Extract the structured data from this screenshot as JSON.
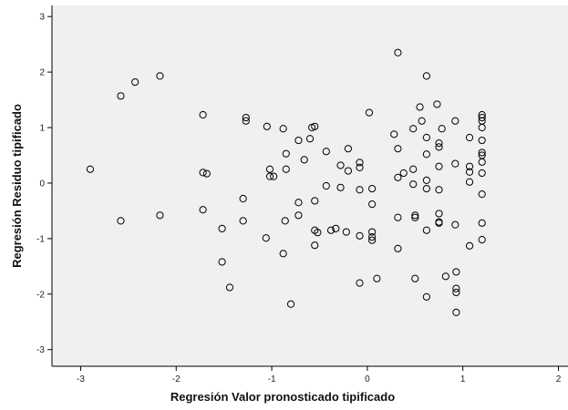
{
  "colors": {
    "plot_background": "#f0f0f0",
    "page_background": "#ffffff",
    "axis": "#000000",
    "marker_stroke": "#000000"
  },
  "chart_data": {
    "type": "scatter",
    "title": "",
    "xlabel": "Regresión Valor pronosticado tipificado",
    "ylabel": "Regresión Residuo tipificado",
    "xlim": [
      -3.3,
      2.1
    ],
    "ylim": [
      -3.3,
      3.2
    ],
    "xticks": [
      -3,
      -2,
      -1,
      0,
      1,
      2
    ],
    "yticks": [
      -3,
      -2,
      -1,
      0,
      1,
      2,
      3
    ],
    "xtick_labels": [
      "-3",
      "-2",
      "-1",
      "0",
      "1",
      "2"
    ],
    "ytick_labels": [
      "-3",
      "-2",
      "-1",
      "0",
      "1",
      "2",
      "3"
    ],
    "grid": false,
    "legend": "none",
    "marker": "open-circle",
    "points": [
      {
        "x": -2.9,
        "y": 0.25
      },
      {
        "x": -2.58,
        "y": 1.57
      },
      {
        "x": -2.58,
        "y": -0.68
      },
      {
        "x": -2.43,
        "y": 1.82
      },
      {
        "x": -2.17,
        "y": 1.93
      },
      {
        "x": -2.17,
        "y": -0.58
      },
      {
        "x": -1.72,
        "y": 1.23
      },
      {
        "x": -1.72,
        "y": 0.19
      },
      {
        "x": -1.68,
        "y": 0.17
      },
      {
        "x": -1.72,
        "y": -0.48
      },
      {
        "x": -1.52,
        "y": -0.82
      },
      {
        "x": -1.52,
        "y": -1.42
      },
      {
        "x": -1.44,
        "y": -1.88
      },
      {
        "x": -1.27,
        "y": 1.18
      },
      {
        "x": -1.27,
        "y": 1.12
      },
      {
        "x": -1.3,
        "y": -0.28
      },
      {
        "x": -1.3,
        "y": -0.68
      },
      {
        "x": -1.05,
        "y": 1.02
      },
      {
        "x": -1.02,
        "y": 0.25
      },
      {
        "x": -1.02,
        "y": 0.12
      },
      {
        "x": -0.98,
        "y": 0.12
      },
      {
        "x": -1.06,
        "y": -0.99
      },
      {
        "x": -0.88,
        "y": 0.98
      },
      {
        "x": -0.85,
        "y": 0.53
      },
      {
        "x": -0.85,
        "y": 0.25
      },
      {
        "x": -0.86,
        "y": -0.68
      },
      {
        "x": -0.88,
        "y": -1.27
      },
      {
        "x": -0.8,
        "y": -2.18
      },
      {
        "x": -0.72,
        "y": 0.77
      },
      {
        "x": -0.72,
        "y": -0.35
      },
      {
        "x": -0.72,
        "y": -0.58
      },
      {
        "x": -0.66,
        "y": 0.42
      },
      {
        "x": -0.58,
        "y": 1.0
      },
      {
        "x": -0.55,
        "y": 1.02
      },
      {
        "x": -0.6,
        "y": 0.8
      },
      {
        "x": -0.55,
        "y": -0.32
      },
      {
        "x": -0.55,
        "y": -0.85
      },
      {
        "x": -0.52,
        "y": -0.89
      },
      {
        "x": -0.55,
        "y": -1.12
      },
      {
        "x": -0.43,
        "y": 0.57
      },
      {
        "x": -0.43,
        "y": -0.05
      },
      {
        "x": -0.38,
        "y": -0.85
      },
      {
        "x": -0.33,
        "y": -0.82
      },
      {
        "x": -0.28,
        "y": 0.32
      },
      {
        "x": -0.28,
        "y": -0.08
      },
      {
        "x": -0.2,
        "y": 0.62
      },
      {
        "x": -0.2,
        "y": 0.22
      },
      {
        "x": -0.22,
        "y": -0.88
      },
      {
        "x": -0.08,
        "y": 0.37
      },
      {
        "x": -0.08,
        "y": 0.28
      },
      {
        "x": -0.08,
        "y": -0.12
      },
      {
        "x": -0.08,
        "y": -0.95
      },
      {
        "x": -0.08,
        "y": -1.8
      },
      {
        "x": 0.02,
        "y": 1.27
      },
      {
        "x": 0.05,
        "y": -0.1
      },
      {
        "x": 0.05,
        "y": -0.38
      },
      {
        "x": 0.05,
        "y": -0.88
      },
      {
        "x": 0.05,
        "y": -0.97
      },
      {
        "x": 0.05,
        "y": -1.03
      },
      {
        "x": 0.1,
        "y": -1.72
      },
      {
        "x": 0.28,
        "y": 0.88
      },
      {
        "x": 0.32,
        "y": 2.35
      },
      {
        "x": 0.32,
        "y": 0.62
      },
      {
        "x": 0.32,
        "y": 0.1
      },
      {
        "x": 0.32,
        "y": -0.62
      },
      {
        "x": 0.32,
        "y": -1.18
      },
      {
        "x": 0.38,
        "y": 0.18
      },
      {
        "x": 0.48,
        "y": 0.98
      },
      {
        "x": 0.48,
        "y": 0.25
      },
      {
        "x": 0.48,
        "y": -0.02
      },
      {
        "x": 0.5,
        "y": -0.58
      },
      {
        "x": 0.5,
        "y": -0.62
      },
      {
        "x": 0.5,
        "y": -1.72
      },
      {
        "x": 0.55,
        "y": 1.37
      },
      {
        "x": 0.57,
        "y": 1.12
      },
      {
        "x": 0.62,
        "y": 1.93
      },
      {
        "x": 0.62,
        "y": 0.82
      },
      {
        "x": 0.62,
        "y": 0.52
      },
      {
        "x": 0.62,
        "y": 0.05
      },
      {
        "x": 0.62,
        "y": -0.1
      },
      {
        "x": 0.62,
        "y": -0.85
      },
      {
        "x": 0.62,
        "y": -2.05
      },
      {
        "x": 0.73,
        "y": 1.42
      },
      {
        "x": 0.75,
        "y": 0.72
      },
      {
        "x": 0.75,
        "y": 0.65
      },
      {
        "x": 0.75,
        "y": 0.3
      },
      {
        "x": 0.75,
        "y": -0.12
      },
      {
        "x": 0.75,
        "y": -0.55
      },
      {
        "x": 0.75,
        "y": -0.7
      },
      {
        "x": 0.75,
        "y": -0.72
      },
      {
        "x": 0.78,
        "y": 0.98
      },
      {
        "x": 0.82,
        "y": -1.68
      },
      {
        "x": 0.92,
        "y": 1.12
      },
      {
        "x": 0.92,
        "y": 0.35
      },
      {
        "x": 0.92,
        "y": -0.75
      },
      {
        "x": 0.93,
        "y": -1.6
      },
      {
        "x": 0.93,
        "y": -1.9
      },
      {
        "x": 0.93,
        "y": -1.97
      },
      {
        "x": 0.93,
        "y": -2.33
      },
      {
        "x": 1.07,
        "y": 0.82
      },
      {
        "x": 1.07,
        "y": 0.3
      },
      {
        "x": 1.07,
        "y": 0.2
      },
      {
        "x": 1.07,
        "y": 0.02
      },
      {
        "x": 1.07,
        "y": -1.13
      },
      {
        "x": 1.2,
        "y": 1.23
      },
      {
        "x": 1.2,
        "y": 1.18
      },
      {
        "x": 1.2,
        "y": 1.12
      },
      {
        "x": 1.2,
        "y": 1.0
      },
      {
        "x": 1.2,
        "y": 0.77
      },
      {
        "x": 1.2,
        "y": 0.55
      },
      {
        "x": 1.2,
        "y": 0.5
      },
      {
        "x": 1.2,
        "y": 0.38
      },
      {
        "x": 1.2,
        "y": 0.18
      },
      {
        "x": 1.2,
        "y": -0.2
      },
      {
        "x": 1.2,
        "y": -0.72
      },
      {
        "x": 1.2,
        "y": -1.02
      }
    ]
  }
}
